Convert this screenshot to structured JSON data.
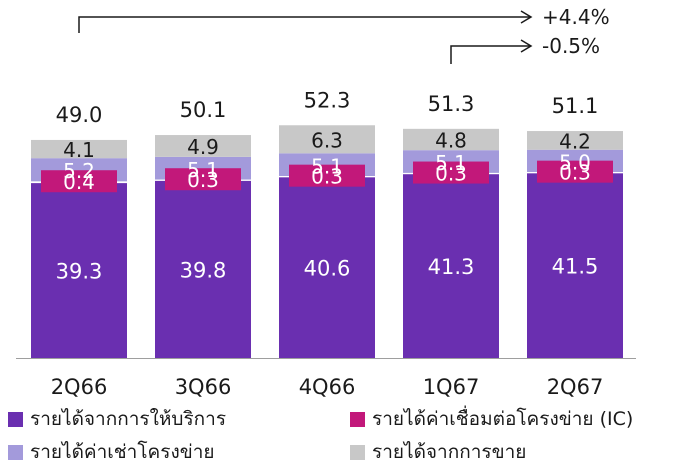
{
  "chart_data": {
    "type": "bar",
    "stacked": true,
    "categories": [
      "2Q66",
      "3Q66",
      "4Q66",
      "1Q67",
      "2Q67"
    ],
    "series": [
      {
        "name": "รายได้จากการให้บริการ",
        "color": "#6a2fb0",
        "label_color": "#ffffff",
        "values": [
          39.3,
          39.8,
          40.6,
          41.3,
          41.5
        ]
      },
      {
        "name": "รายได้ค่าเชื่อมต่อโครงข่าย (IC)",
        "color": "#c2187a",
        "label_color": "#ffffff",
        "values": [
          0.4,
          0.3,
          0.3,
          0.3,
          0.3
        ]
      },
      {
        "name": "รายได้ค่าเช่าโครงข่าย",
        "color": "#a39adb",
        "label_color": "#ffffff",
        "values": [
          5.2,
          5.1,
          5.1,
          5.1,
          5.0
        ]
      },
      {
        "name": "รายได้จากการขาย",
        "color": "#c8c8c8",
        "label_color": "#1a1a1a",
        "values": [
          4.1,
          4.9,
          6.3,
          4.8,
          4.2
        ]
      }
    ],
    "totals": [
      49.0,
      50.1,
      52.3,
      51.3,
      51.1
    ],
    "total_labels": [
      "49.0",
      "50.1",
      "52.3",
      "51.3",
      "51.1"
    ],
    "value_labels": [
      [
        "39.3",
        "39.8",
        "40.6",
        "41.3",
        "41.5"
      ],
      [
        "0.4",
        "0.3",
        "0.3",
        "0.3",
        "0.3"
      ],
      [
        "5.2",
        "5.1",
        "5.1",
        "5.1",
        "5.0"
      ],
      [
        "4.1",
        "4.9",
        "6.3",
        "4.8",
        "4.2"
      ]
    ],
    "annotations": [
      {
        "from": "2Q66",
        "to": "2Q67",
        "text": "+4.4%"
      },
      {
        "from": "1Q67",
        "to": "2Q67",
        "text": "-0.5%"
      }
    ],
    "legend_position": "bottom",
    "grid": false
  }
}
